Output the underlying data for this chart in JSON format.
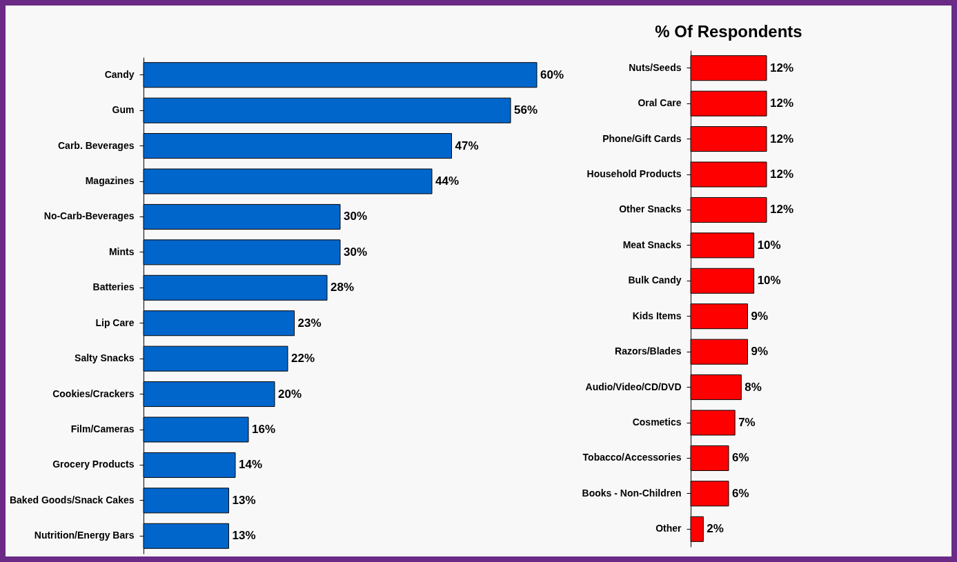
{
  "chart_data": [
    {
      "type": "bar",
      "orientation": "horizontal",
      "categories": [
        "Candy",
        "Gum",
        "Carb. Beverages",
        "Magazines",
        "No-Carb-Beverages",
        "Mints",
        "Batteries",
        "Lip Care",
        "Salty Snacks",
        "Cookies/Crackers",
        "Film/Cameras",
        "Grocery Products",
        "Baked Goods/Snack Cakes",
        "Nutrition/Energy Bars"
      ],
      "series": [
        {
          "color": "#0066cc",
          "values": [
            60,
            56,
            47,
            44,
            30,
            30,
            28,
            23,
            22,
            20,
            16,
            14,
            13,
            13
          ],
          "value_labels": [
            "60%",
            "56%",
            "47%",
            "44%",
            "30%",
            "30%",
            "28%",
            "23%",
            "22%",
            "20%",
            "16%",
            "14%",
            "13%",
            "13%"
          ]
        }
      ]
    },
    {
      "type": "bar",
      "orientation": "horizontal",
      "title": "% Of Respondents",
      "categories": [
        "Nuts/Seeds",
        "Oral Care",
        "Phone/Gift Cards",
        "Household Products",
        "Other Snacks",
        "Meat Snacks",
        "Bulk Candy",
        "Kids Items",
        "Razors/Blades",
        "Audio/Video/CD/DVD",
        "Cosmetics",
        "Tobacco/Accessories",
        "Books - Non-Children",
        "Other"
      ],
      "series": [
        {
          "color": "#ff0000",
          "values": [
            12,
            12,
            12,
            12,
            12,
            10,
            10,
            9,
            9,
            8,
            7,
            6,
            6,
            2
          ],
          "value_labels": [
            "12%",
            "12%",
            "12%",
            "12%",
            "12%",
            "10%",
            "10%",
            "9%",
            "9%",
            "8%",
            "7%",
            "6%",
            "6%",
            "2%"
          ]
        }
      ]
    }
  ]
}
